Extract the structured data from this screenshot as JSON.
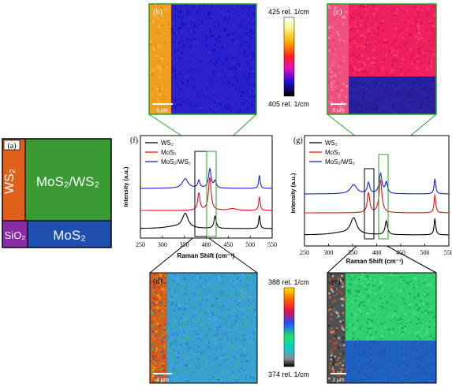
{
  "panel_labels": {
    "a": "(a)",
    "b": "(b)",
    "c": "(c)",
    "d": "(d)",
    "e": "(e)",
    "f": "(f)",
    "g": "(g)"
  },
  "schematic": {
    "ws2": "WS₂",
    "mos2_ws2": "MoS₂/WS₂",
    "sio2": "SiO₂",
    "mos2": "MoS₂",
    "colors": {
      "ws2": "#e0601a",
      "mos2_ws2": "#3a9a34",
      "sio2": "#8a2ca8",
      "mos2": "#1f4fb0"
    }
  },
  "colorbars": {
    "top": {
      "max": "425 rel. 1/cm",
      "min": "405 rel. 1/cm"
    },
    "bottom": {
      "max": "388 rel. 1/cm",
      "min": "374 rel. 1/cm"
    }
  },
  "scalebars": {
    "b": "4 µm",
    "c": "3 µm",
    "d": "4 µm",
    "e": "3 µm"
  },
  "spectra_plot": {
    "xlabel": "Raman Shift (cm⁻¹)",
    "ylabel": "Intensity (a.u.)",
    "xticks": [
      "250",
      "300",
      "350",
      "400",
      "450",
      "500",
      "550"
    ]
  },
  "chart_data": [
    {
      "type": "line",
      "panel": "(f)",
      "xlabel": "Raman Shift (cm-1)",
      "ylabel": "Intensity (a.u.)",
      "xlim": [
        250,
        550
      ],
      "series": [
        {
          "name": "WS₂",
          "color": "#000000",
          "peaks": [
            {
              "x": 352,
              "h": 0.42,
              "w": 8
            },
            {
              "x": 420,
              "h": 0.35,
              "w": 3
            },
            {
              "x": 521,
              "h": 0.38,
              "w": 2
            },
            {
              "x": 325,
              "h": 0.05,
              "w": 25
            }
          ]
        },
        {
          "name": "MoS₂",
          "color": "#e8101e",
          "peaks": [
            {
              "x": 383,
              "h": 0.5,
              "w": 3
            },
            {
              "x": 408,
              "h": 0.95,
              "w": 3.5
            },
            {
              "x": 521,
              "h": 0.4,
              "w": 2
            },
            {
              "x": 460,
              "h": 0.05,
              "w": 12
            }
          ]
        },
        {
          "name": "MoS₂/WS₂",
          "color": "#1a22d8",
          "peaks": [
            {
              "x": 352,
              "h": 0.28,
              "w": 8
            },
            {
              "x": 383,
              "h": 0.22,
              "w": 3
            },
            {
              "x": 408,
              "h": 0.55,
              "w": 3.5
            },
            {
              "x": 420,
              "h": 0.2,
              "w": 3
            },
            {
              "x": 521,
              "h": 0.38,
              "w": 2
            }
          ]
        }
      ]
    },
    {
      "type": "line",
      "panel": "(g)",
      "xlabel": "Raman Shift (cm-1)",
      "ylabel": "Intensity (a.u.)",
      "xlim": [
        250,
        550
      ],
      "series": [
        {
          "name": "WS₂",
          "color": "#000000",
          "peaks": [
            {
              "x": 352,
              "h": 0.45,
              "w": 8
            },
            {
              "x": 420,
              "h": 0.38,
              "w": 3
            },
            {
              "x": 521,
              "h": 0.45,
              "w": 2
            },
            {
              "x": 325,
              "h": 0.05,
              "w": 25
            }
          ]
        },
        {
          "name": "MoS₂",
          "color": "#e8101e",
          "peaks": [
            {
              "x": 383,
              "h": 0.55,
              "w": 3
            },
            {
              "x": 408,
              "h": 0.9,
              "w": 3.5
            },
            {
              "x": 521,
              "h": 0.5,
              "w": 2
            }
          ]
        },
        {
          "name": "MoS₂/WS₂",
          "color": "#1a22d8",
          "peaks": [
            {
              "x": 352,
              "h": 0.25,
              "w": 8
            },
            {
              "x": 383,
              "h": 0.3,
              "w": 3
            },
            {
              "x": 408,
              "h": 0.55,
              "w": 3.5
            },
            {
              "x": 420,
              "h": 0.3,
              "w": 3
            },
            {
              "x": 521,
              "h": 0.42,
              "w": 2
            }
          ]
        }
      ]
    }
  ]
}
